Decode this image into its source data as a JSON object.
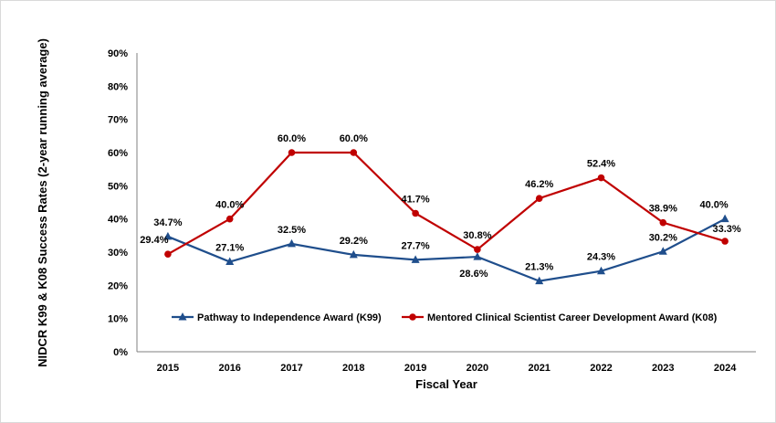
{
  "chart_data": {
    "type": "line",
    "title": "",
    "xlabel": "Fiscal Year",
    "ylabel": "NIDCR K99 & K08 Success Rates (2-year running average)",
    "ylim": [
      0,
      90
    ],
    "yticks": [
      "0%",
      "10%",
      "20%",
      "30%",
      "40%",
      "50%",
      "60%",
      "70%",
      "80%",
      "90%"
    ],
    "categories": [
      "2015",
      "2016",
      "2017",
      "2018",
      "2019",
      "2020",
      "2021",
      "2022",
      "2023",
      "2024"
    ],
    "grid": false,
    "legend_position": "bottom-inside",
    "series": [
      {
        "name": "Pathway to Independence Award (K99)",
        "color": "#1F4E8C",
        "marker": "triangle",
        "values": [
          34.7,
          27.1,
          32.5,
          29.2,
          27.7,
          28.6,
          21.3,
          24.3,
          30.2,
          40.0
        ],
        "labels": [
          "34.7%",
          "27.1%",
          "32.5%",
          "29.2%",
          "27.7%",
          "28.6%",
          "21.3%",
          "24.3%",
          "30.2%",
          "40.0%"
        ]
      },
      {
        "name": "Mentored Clinical Scientist Career Development Award (K08)",
        "color": "#C00000",
        "marker": "circle",
        "values": [
          29.4,
          40.0,
          60.0,
          60.0,
          41.7,
          30.8,
          46.2,
          52.4,
          38.9,
          33.3
        ],
        "labels": [
          "29.4%",
          "40.0%",
          "60.0%",
          "60.0%",
          "41.7%",
          "30.8%",
          "46.2%",
          "52.4%",
          "38.9%",
          "33.3%"
        ]
      }
    ]
  }
}
